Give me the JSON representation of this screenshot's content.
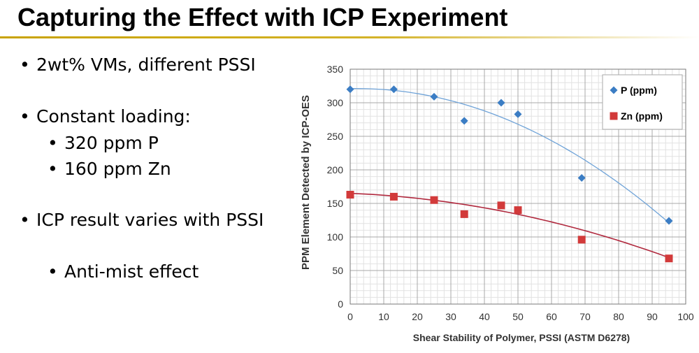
{
  "slide": {
    "title": "Capturing the Effect with ICP Experiment",
    "accent_color": "#c8a200",
    "bullets": [
      {
        "text": "2wt% VMs, different PSSI",
        "level": 1
      },
      {
        "text": "Constant loading:",
        "level": 1
      },
      {
        "text": "320 ppm P",
        "level": 2
      },
      {
        "text": "160 ppm Zn",
        "level": 2
      },
      {
        "text": "ICP result varies with PSSI",
        "level": 1
      },
      {
        "text": "Anti-mist effect",
        "level": 2
      }
    ],
    "bullet_glyph": "•"
  },
  "chart_data": {
    "type": "scatter",
    "title": "",
    "xlabel": "Shear Stability  of Polymer, PSSI (ASTM D6278)",
    "ylabel": "PPM Element Detected by ICP-OES",
    "xlim": [
      0,
      100
    ],
    "ylim": [
      0,
      350
    ],
    "xticks": [
      0,
      10,
      20,
      30,
      40,
      50,
      60,
      70,
      80,
      90,
      100
    ],
    "yticks": [
      0,
      50,
      100,
      150,
      200,
      250,
      300,
      350
    ],
    "grid": true,
    "legend_position": "top-right",
    "series": [
      {
        "name": "P (ppm)",
        "marker": "diamond",
        "color": "#3b7dc4",
        "trend_color": "#6fa3d8",
        "x": [
          0,
          13,
          25,
          34,
          45,
          50,
          69,
          95
        ],
        "y": [
          320,
          320,
          309,
          273,
          300,
          283,
          188,
          124
        ],
        "trendline": {
          "kind": "polynomial",
          "coefficients": [
            321,
            0.1,
            -0.0232
          ]
        }
      },
      {
        "name": "Zn (ppm)",
        "marker": "square",
        "color": "#d23a3a",
        "trend_color": "#b0283d",
        "x": [
          0,
          13,
          25,
          34,
          45,
          50,
          69,
          95
        ],
        "y": [
          163,
          160,
          155,
          134,
          147,
          140,
          96,
          68
        ],
        "trendline": {
          "kind": "polynomial",
          "coefficients": [
            165,
            -0.2,
            -0.0085
          ]
        }
      }
    ]
  }
}
